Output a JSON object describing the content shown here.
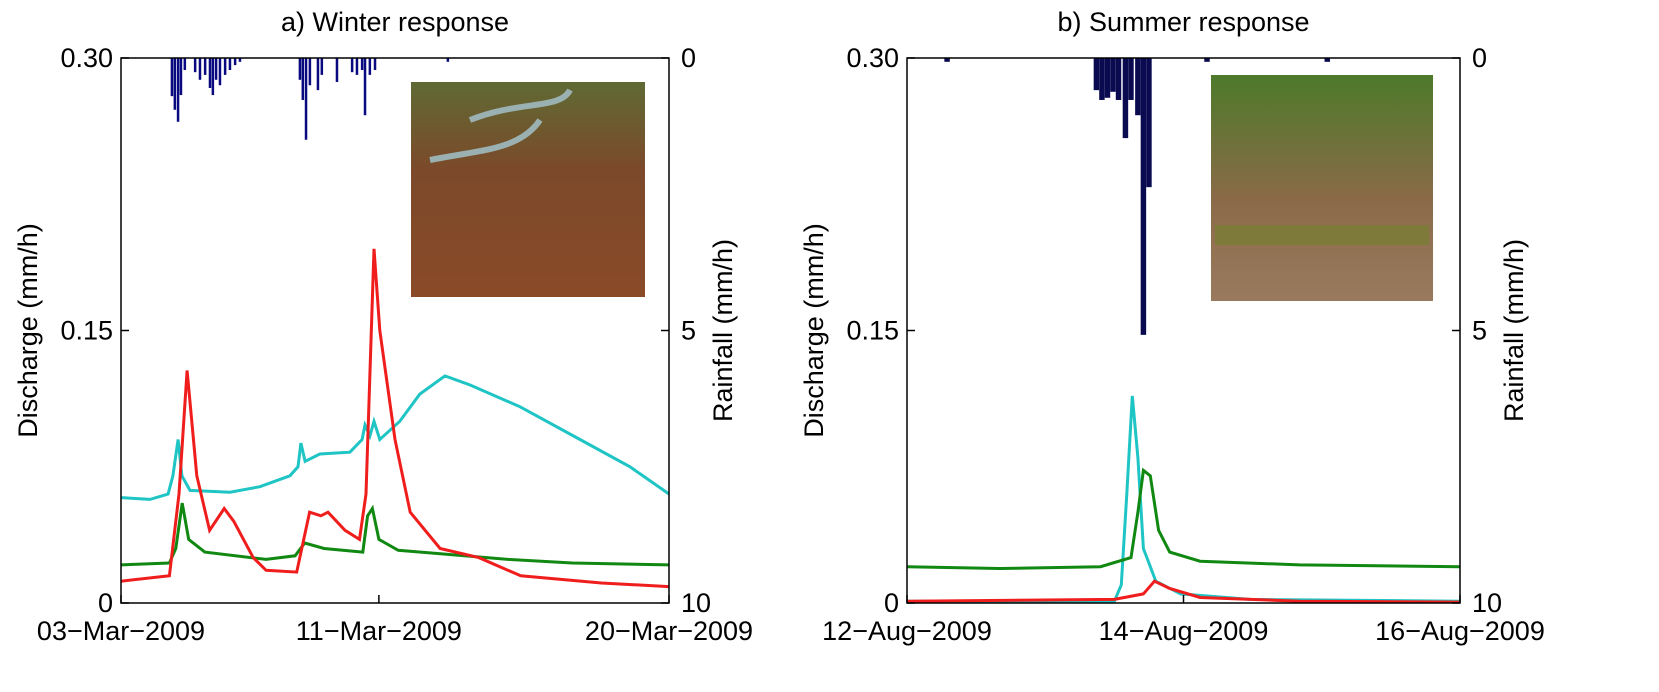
{
  "chart_data": [
    {
      "type": "line",
      "title": "a) Winter response",
      "y_label": "Discharge (mm/h)",
      "y2_label": "Rainfall (mm/h)",
      "xlim": [
        0,
        17
      ],
      "xticks": [
        {
          "value": 0,
          "label": "03−Mar−2009"
        },
        {
          "value": 8,
          "label": "11−Mar−2009"
        },
        {
          "value": 17,
          "label": "20−Mar−2009"
        }
      ],
      "ylim": [
        0,
        0.3
      ],
      "yticks": [
        0,
        0.15,
        {
          "value": 0.3,
          "label": "0.30"
        }
      ],
      "y2lim": [
        0,
        10
      ],
      "y2ticks": [
        0,
        5,
        10
      ],
      "y2_inverted": true,
      "series": [
        {
          "color": "#1fc4c4",
          "x": [
            0,
            0.9,
            1.46,
            1.61,
            1.77,
            1.89,
            2.14,
            3.38,
            4.31,
            5.24,
            5.49,
            5.58,
            5.71,
            6.17,
            7.1,
            7.48,
            7.57,
            7.72,
            7.85,
            8.03,
            8.65,
            9.27,
            10.05,
            10.83,
            12.38,
            14.24,
            15.79,
            17
          ],
          "values": [
            0.058,
            0.057,
            0.06,
            0.07,
            0.09,
            0.07,
            0.062,
            0.061,
            0.064,
            0.07,
            0.075,
            0.088,
            0.078,
            0.082,
            0.083,
            0.09,
            0.098,
            0.092,
            0.1,
            0.09,
            0.1,
            0.115,
            0.125,
            0.12,
            0.108,
            0.09,
            0.075,
            0.06
          ]
        },
        {
          "color": "#118811",
          "x": [
            0,
            1.5,
            1.7,
            1.9,
            2.1,
            2.6,
            4.5,
            5.4,
            5.7,
            6.3,
            7.5,
            7.65,
            7.8,
            8.0,
            8.6,
            10,
            12,
            14,
            17
          ],
          "values": [
            0.021,
            0.022,
            0.03,
            0.055,
            0.035,
            0.028,
            0.024,
            0.026,
            0.033,
            0.03,
            0.028,
            0.048,
            0.052,
            0.035,
            0.029,
            0.027,
            0.024,
            0.022,
            0.021
          ]
        },
        {
          "color": "#f01d1d",
          "x": [
            0,
            1.5,
            1.8,
            2.05,
            2.35,
            2.75,
            3.2,
            3.5,
            4.1,
            4.5,
            5.45,
            5.85,
            6.2,
            6.42,
            6.95,
            7.4,
            7.6,
            7.85,
            8.03,
            8.5,
            8.97,
            9.9,
            11.1,
            12.4,
            14.9,
            17
          ],
          "values": [
            0.012,
            0.015,
            0.06,
            0.128,
            0.07,
            0.04,
            0.052,
            0.045,
            0.025,
            0.018,
            0.017,
            0.05,
            0.048,
            0.05,
            0.04,
            0.035,
            0.06,
            0.195,
            0.15,
            0.09,
            0.05,
            0.03,
            0.025,
            0.015,
            0.011,
            0.009
          ]
        },
        {
          "type": "bar",
          "axis": "y2",
          "color": "#0a0a80",
          "x": [
            1.58,
            1.67,
            1.77,
            1.86,
            1.98,
            2.3,
            2.45,
            2.61,
            2.76,
            2.85,
            2.95,
            3.07,
            3.23,
            3.38,
            3.54,
            3.69,
            5.55,
            5.64,
            5.74,
            5.86,
            6.11,
            6.23,
            6.7,
            7.17,
            7.32,
            7.48,
            7.57,
            7.72,
            7.88,
            10.14
          ],
          "values": [
            0.7,
            0.95,
            1.17,
            0.68,
            0.22,
            0.26,
            0.4,
            0.31,
            0.55,
            0.68,
            0.4,
            0.5,
            0.31,
            0.22,
            0.13,
            0.07,
            0.4,
            0.77,
            1.5,
            0.5,
            0.59,
            0.31,
            0.44,
            0.26,
            0.31,
            0.22,
            1.05,
            0.31,
            0.22,
            0.07
          ]
        }
      ]
    },
    {
      "type": "line",
      "title": "b) Summer response",
      "y_label": "Discharge (mm/h)",
      "y2_label": "Rainfall (mm/h)",
      "xlim": [
        0,
        4
      ],
      "xticks": [
        {
          "value": 0,
          "label": "12−Aug−2009"
        },
        {
          "value": 2,
          "label": "14−Aug−2009"
        },
        {
          "value": 4,
          "label": "16−Aug−2009"
        }
      ],
      "ylim": [
        0,
        0.3
      ],
      "yticks": [
        0,
        0.15,
        {
          "value": 0.3,
          "label": "0.30"
        }
      ],
      "y2lim": [
        0,
        10
      ],
      "y2ticks": [
        0,
        5,
        10
      ],
      "y2_inverted": true,
      "series": [
        {
          "color": "#1fc4c4",
          "x": [
            0,
            1.5,
            1.55,
            1.59,
            1.63,
            1.67,
            1.71,
            1.8,
            1.98,
            2.48,
            4
          ],
          "values": [
            0.001,
            0.001,
            0.01,
            0.06,
            0.114,
            0.08,
            0.03,
            0.012,
            0.005,
            0.002,
            0.001
          ]
        },
        {
          "color": "#118811",
          "x": [
            0,
            0.67,
            1.4,
            1.62,
            1.67,
            1.71,
            1.76,
            1.82,
            1.9,
            2.12,
            2.84,
            4
          ],
          "values": [
            0.02,
            0.019,
            0.02,
            0.025,
            0.05,
            0.073,
            0.07,
            0.04,
            0.028,
            0.023,
            0.021,
            0.02
          ]
        },
        {
          "color": "#f01d1d",
          "x": [
            0,
            1.5,
            1.71,
            1.79,
            1.9,
            2.12,
            2.84,
            4
          ],
          "values": [
            0.001,
            0.002,
            0.005,
            0.012,
            0.008,
            0.003,
            0.001,
            0.0005
          ]
        },
        {
          "type": "bar",
          "axis": "y2",
          "color": "#0a0a50",
          "x": [
            0.29,
            1.37,
            1.41,
            1.45,
            1.49,
            1.53,
            1.58,
            1.62,
            1.67,
            1.71,
            1.75,
            2.17,
            3.04
          ],
          "values": [
            0.07,
            0.59,
            0.77,
            0.73,
            0.62,
            0.77,
            1.47,
            0.77,
            1.05,
            5.08,
            2.37,
            0.07,
            0.07
          ]
        }
      ]
    }
  ]
}
